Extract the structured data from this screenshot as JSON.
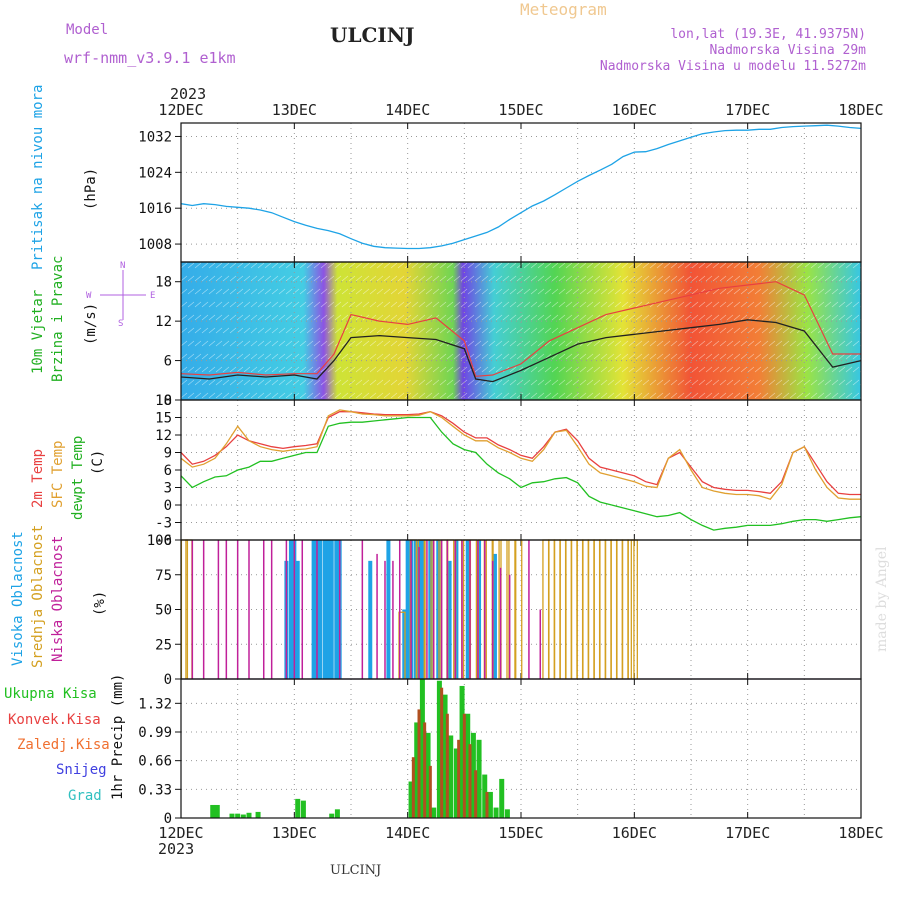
{
  "header": {
    "model_label": "Model",
    "model_name": "wrf-nmm_v3.9.1 e1km",
    "title": "ULCINJ",
    "meteogram": "Meteogram",
    "lonlat": "lon,lat (19.3E, 41.9375N)",
    "elev": "Nadmorska Visina 29m",
    "elev_model": "Nadmorska Visina u modelu 11.5272m"
  },
  "footer": {
    "station": "ULCINJ",
    "credit": "made by Angel"
  },
  "time_axis": {
    "year": "2023",
    "ticks": [
      "12DEC",
      "13DEC",
      "14DEC",
      "15DEC",
      "16DEC",
      "17DEC",
      "18DEC"
    ]
  },
  "colors": {
    "pressure": "#1ea3e6",
    "temp2m": "#e84040",
    "sfc": "#e0a030",
    "dewpt": "#22c022",
    "high": "#1ea3e6",
    "mid": "#d4a020",
    "low": "#c0209a",
    "total": "#22c022",
    "conv": "#b05020",
    "compass": "#b060e0"
  },
  "chart_data": [
    {
      "type": "line",
      "panel": "pressure",
      "ylabel_1": "Pritisak na nivou mora",
      "ylabel_2": "(hPa)",
      "ylim": [
        1004,
        1035
      ],
      "yticks": [
        1008,
        1016,
        1024,
        1032
      ],
      "x_days": [
        0,
        0.1,
        0.2,
        0.3,
        0.4,
        0.5,
        0.6,
        0.7,
        0.8,
        0.9,
        1.0,
        1.1,
        1.2,
        1.3,
        1.4,
        1.5,
        1.6,
        1.7,
        1.8,
        1.9,
        2.0,
        2.1,
        2.2,
        2.3,
        2.4,
        2.5,
        2.6,
        2.7,
        2.8,
        2.9,
        3.0,
        3.1,
        3.2,
        3.3,
        3.4,
        3.5,
        3.6,
        3.7,
        3.8,
        3.9,
        4.0,
        4.1,
        4.2,
        4.3,
        4.4,
        4.5,
        4.6,
        4.7,
        4.8,
        4.9,
        5.0,
        5.1,
        5.2,
        5.3,
        5.4,
        5.5,
        5.6,
        5.7,
        5.8,
        5.9,
        6.0
      ],
      "values": [
        1017,
        1016.6,
        1017,
        1016.8,
        1016.4,
        1016.2,
        1016,
        1015.6,
        1015,
        1014,
        1013,
        1012.2,
        1011.5,
        1011,
        1010.3,
        1009.2,
        1008.2,
        1007.5,
        1007.2,
        1007.1,
        1007,
        1007,
        1007.2,
        1007.6,
        1008.2,
        1009,
        1009.8,
        1010.6,
        1011.8,
        1013.5,
        1015,
        1016.5,
        1017.6,
        1019,
        1020.5,
        1022,
        1023.3,
        1024.5,
        1025.8,
        1027.5,
        1028.5,
        1028.6,
        1029.3,
        1030.2,
        1031,
        1031.8,
        1032.6,
        1033,
        1033.3,
        1033.4,
        1033.4,
        1033.6,
        1033.6,
        1034,
        1034.2,
        1034.3,
        1034.4,
        1034.5,
        1034.3,
        1034,
        1033.8
      ]
    },
    {
      "type": "line",
      "panel": "wind",
      "ylabel_1": "10m Vjetar",
      "ylabel_2": "Brzina i Pravac",
      "ylabel_3": "(m/s)",
      "compass": {
        "n": "N",
        "s": "S",
        "e": "E",
        "w": "W"
      },
      "ylim": [
        0,
        21
      ],
      "yticks": [
        0,
        6,
        12,
        18
      ],
      "x_days": [
        0,
        0.25,
        0.5,
        0.75,
        1.0,
        1.2,
        1.35,
        1.5,
        1.75,
        2.0,
        2.25,
        2.5,
        2.6,
        2.75,
        3.0,
        3.25,
        3.5,
        3.75,
        4.0,
        4.25,
        4.5,
        4.75,
        5.0,
        5.25,
        5.5,
        5.75,
        6.0
      ],
      "values": [
        3.5,
        3.2,
        3.8,
        3.5,
        3.8,
        3.2,
        6,
        9.5,
        9.8,
        9.5,
        9.2,
        7.8,
        3.2,
        2.8,
        4.5,
        6.5,
        8.5,
        9.5,
        10,
        10.5,
        11,
        11.5,
        12.2,
        11.8,
        10.5,
        5,
        6
      ],
      "gust_values": [
        4,
        3.8,
        4.2,
        3.8,
        4,
        4,
        7,
        13,
        12,
        11.5,
        12.5,
        9,
        3.6,
        3.8,
        5.5,
        9,
        11,
        13,
        14,
        15,
        16,
        17,
        17.5,
        18,
        16,
        7,
        7
      ]
    },
    {
      "type": "line",
      "panel": "temperature",
      "ylabel_1": "2m Temp",
      "ylabel_2": "SFC Temp",
      "ylabel_3": "dewpt Temp",
      "ylabel_4": "(C)",
      "ylim": [
        -6,
        18
      ],
      "yticks": [
        -6,
        -3,
        0,
        3,
        6,
        9,
        12,
        15,
        18
      ],
      "x_days": [
        0,
        0.1,
        0.2,
        0.3,
        0.4,
        0.5,
        0.6,
        0.7,
        0.8,
        0.9,
        1.0,
        1.1,
        1.2,
        1.3,
        1.4,
        1.5,
        1.6,
        1.7,
        1.8,
        1.9,
        2.0,
        2.1,
        2.2,
        2.3,
        2.4,
        2.5,
        2.6,
        2.7,
        2.8,
        2.9,
        3.0,
        3.1,
        3.2,
        3.3,
        3.4,
        3.5,
        3.6,
        3.7,
        3.8,
        3.9,
        4.0,
        4.1,
        4.2,
        4.3,
        4.4,
        4.5,
        4.6,
        4.7,
        4.8,
        4.9,
        5.0,
        5.1,
        5.2,
        5.3,
        5.4,
        5.5,
        5.6,
        5.7,
        5.8,
        5.9,
        6.0
      ],
      "series": [
        {
          "name": "2m Temp",
          "color_key": "temp2m",
          "values": [
            9,
            7,
            7.5,
            8.5,
            10,
            12,
            11,
            10.5,
            10,
            9.7,
            10,
            10.2,
            10.5,
            15,
            16,
            16,
            15.8,
            15.6,
            15.5,
            15.5,
            15.5,
            15.6,
            16,
            15.3,
            14,
            12.5,
            11.5,
            11.5,
            10.3,
            9.5,
            8.5,
            8,
            10,
            12.5,
            13,
            11,
            8,
            6.5,
            6,
            5.5,
            5,
            4,
            3.5,
            8,
            9,
            6.5,
            4,
            3,
            2.7,
            2.5,
            2.5,
            2.3,
            2,
            4,
            9,
            10,
            7,
            4,
            2,
            1.8,
            1.8
          ]
        },
        {
          "name": "SFC Temp",
          "color_key": "sfc",
          "values": [
            8,
            6.5,
            7,
            8,
            10.5,
            13.5,
            11,
            10,
            9.5,
            9.2,
            9.5,
            9.6,
            10,
            15.3,
            16.3,
            16,
            15.6,
            15.5,
            15.3,
            15.3,
            15.3,
            15.4,
            16,
            15,
            13.5,
            12,
            11,
            11,
            9.8,
            9,
            8,
            7.5,
            9.5,
            12.5,
            12.8,
            10,
            7,
            5.5,
            5,
            4.5,
            4,
            3.2,
            3,
            8,
            9.5,
            6,
            3,
            2.4,
            2,
            1.8,
            1.8,
            1.6,
            1,
            3.5,
            9,
            10,
            6,
            3,
            1.2,
            1,
            1
          ]
        },
        {
          "name": "dewpt Temp",
          "color_key": "dewpt",
          "values": [
            5,
            3,
            4,
            4.8,
            5,
            6,
            6.5,
            7.5,
            7.5,
            8,
            8.5,
            9,
            9,
            13.5,
            14,
            14.2,
            14.2,
            14.4,
            14.6,
            14.8,
            15,
            15,
            15,
            12.5,
            10.5,
            9.5,
            9,
            7,
            5.5,
            4.5,
            3,
            3.8,
            4,
            4.5,
            4.7,
            3.8,
            1.5,
            0.5,
            0,
            -0.5,
            -1,
            -1.5,
            -2,
            -1.8,
            -1.3,
            -2.5,
            -3.5,
            -4.3,
            -4,
            -3.8,
            -3.5,
            -3.5,
            -3.5,
            -3.2,
            -2.8,
            -2.5,
            -2.5,
            -2.8,
            -2.5,
            -2.2,
            -2
          ]
        }
      ]
    },
    {
      "type": "bar",
      "panel": "clouds",
      "ylabel_1": "Visoka Oblacnost",
      "ylabel_2": "Srednja Oblacnost",
      "ylabel_3": "Niska Oblacnost",
      "ylabel_4": "(%)",
      "ylim": [
        0,
        100
      ],
      "yticks": [
        0,
        25,
        50,
        75,
        100
      ],
      "series": [
        {
          "name": "Visoka Oblacnost",
          "color_key": "high",
          "x_days": [
            0.93,
            0.97,
            1.0,
            1.03,
            1.17,
            1.2,
            1.23,
            1.27,
            1.3,
            1.33,
            1.37,
            1.4,
            1.67,
            1.83,
            1.97,
            2.0,
            2.03,
            2.07,
            2.1,
            2.13,
            2.2,
            2.27,
            2.37,
            2.43,
            2.53,
            2.63,
            2.77
          ],
          "values": [
            85,
            100,
            100,
            85,
            100,
            100,
            100,
            100,
            100,
            100,
            100,
            100,
            85,
            100,
            50,
            100,
            100,
            100,
            100,
            100,
            100,
            100,
            85,
            100,
            100,
            100,
            90
          ]
        },
        {
          "name": "Srednja Oblacnost",
          "color_key": "mid",
          "x_days": [
            0.03,
            0.07,
            1.95,
            2.05,
            2.12,
            2.18,
            2.25,
            2.32,
            2.38,
            2.45,
            2.52,
            2.58,
            2.65,
            2.72,
            2.78,
            2.85,
            2.92,
            2.98,
            3.22,
            3.27,
            3.32,
            3.37,
            3.42,
            3.47,
            3.52,
            3.57,
            3.62,
            3.67,
            3.72,
            3.77,
            3.82,
            3.87,
            3.92,
            3.97,
            4.0
          ],
          "values": [
            100,
            100,
            48,
            100,
            100,
            100,
            100,
            100,
            100,
            100,
            100,
            100,
            100,
            100,
            100,
            100,
            100,
            100,
            100,
            100,
            100,
            100,
            100,
            100,
            100,
            100,
            100,
            100,
            100,
            100,
            100,
            100,
            100,
            100,
            100
          ]
        },
        {
          "name": "Niska Oblacnost",
          "color_key": "low",
          "x_days": [
            0.1,
            0.2,
            0.33,
            0.4,
            0.5,
            0.6,
            0.73,
            0.8,
            0.93,
            1.0,
            1.07,
            1.2,
            1.4,
            1.6,
            1.73,
            1.8,
            1.87,
            1.93,
            2.03,
            2.1,
            2.17,
            2.23,
            2.3,
            2.35,
            2.42,
            2.48,
            2.55,
            2.62,
            2.68,
            2.75,
            2.82,
            2.9,
            3.07,
            3.17
          ],
          "values": [
            100,
            100,
            100,
            100,
            100,
            100,
            100,
            100,
            100,
            100,
            100,
            100,
            100,
            100,
            90,
            85,
            85,
            100,
            100,
            95,
            100,
            100,
            100,
            100,
            100,
            100,
            100,
            100,
            100,
            85,
            80,
            75,
            100,
            50
          ]
        }
      ]
    },
    {
      "type": "bar",
      "panel": "precip",
      "ylabel_main": "1hr Precip (mm)",
      "legend": [
        "Ukupna Kisa",
        "Konvek.Kisa",
        "Zaledj.Kisa",
        "Snijeg",
        "Grad"
      ],
      "legend_color_keys": [
        "total",
        "temp2m",
        "sfc",
        "compass",
        "high"
      ],
      "ylim": [
        0,
        1.6
      ],
      "yticks": [
        0,
        0.33,
        0.66,
        0.99,
        1.32
      ],
      "yticklabels": [
        "0",
        "0.33",
        "0.66",
        "0.99",
        "1.32"
      ],
      "total": {
        "x_days": [
          0.28,
          0.32,
          0.45,
          0.5,
          0.55,
          0.6,
          0.68,
          1.03,
          1.08,
          1.33,
          1.38,
          2.03,
          2.08,
          2.13,
          2.18,
          2.23,
          2.28,
          2.33,
          2.38,
          2.43,
          2.48,
          2.53,
          2.58,
          2.63,
          2.68,
          2.73,
          2.78,
          2.83,
          2.88
        ],
        "values": [
          0.15,
          0.15,
          0.05,
          0.05,
          0.04,
          0.06,
          0.07,
          0.22,
          0.2,
          0.05,
          0.1,
          0.42,
          1.1,
          1.6,
          0.98,
          0.12,
          1.58,
          1.42,
          0.95,
          0.8,
          1.52,
          1.2,
          0.98,
          0.9,
          0.5,
          0.3,
          0.12,
          0.45,
          0.1
        ]
      },
      "convective": {
        "x_days": [
          2.05,
          2.1,
          2.15,
          2.2,
          2.3,
          2.35,
          2.45,
          2.5,
          2.55,
          2.6,
          2.7
        ],
        "values": [
          0.7,
          1.25,
          1.1,
          0.6,
          1.5,
          1.2,
          0.9,
          1.2,
          0.85,
          0.55,
          0.3
        ]
      }
    }
  ]
}
